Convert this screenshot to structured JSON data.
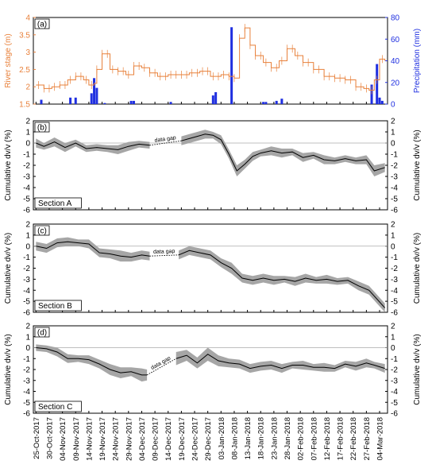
{
  "chart_data": [
    {
      "type": "line",
      "panel_label": "(a)",
      "ylabel": "River stage (m)",
      "ylabel_right": "Precipitation (mm)",
      "ylim": [
        1.5,
        4
      ],
      "ylim_right": [
        0,
        80
      ],
      "yticks": [
        "1.5",
        "2",
        "2.5",
        "3",
        "3.5",
        "4"
      ],
      "yticks_right": [
        "0",
        "20",
        "40",
        "60",
        "80"
      ],
      "colors": {
        "stage": "#e8803a",
        "precip": "#1f2fe0"
      },
      "series": [
        {
          "name": "River stage",
          "x": [
            "2017-10-25",
            "2017-10-28",
            "2017-10-31",
            "2017-11-03",
            "2017-11-06",
            "2017-11-09",
            "2017-11-12",
            "2017-11-14",
            "2017-11-16",
            "2017-11-17",
            "2017-11-19",
            "2017-11-22",
            "2017-11-25",
            "2017-11-28",
            "2017-12-01",
            "2017-12-04",
            "2017-12-07",
            "2017-12-10",
            "2017-12-14",
            "2017-12-18",
            "2017-12-22",
            "2017-12-26",
            "2017-12-30",
            "2018-01-03",
            "2018-01-06",
            "2018-01-08",
            "2018-01-10",
            "2018-01-12",
            "2018-01-14",
            "2018-01-16",
            "2018-01-19",
            "2018-01-22",
            "2018-01-25",
            "2018-01-28",
            "2018-01-31",
            "2018-02-03",
            "2018-02-07",
            "2018-02-11",
            "2018-02-15",
            "2018-02-19",
            "2018-02-23",
            "2018-02-26",
            "2018-02-28",
            "2018-03-02",
            "2018-03-04",
            "2018-03-06"
          ],
          "values": [
            2.05,
            1.95,
            2.0,
            2.05,
            2.2,
            2.3,
            2.2,
            2.05,
            2.1,
            2.5,
            2.95,
            2.5,
            2.45,
            2.35,
            2.6,
            2.55,
            2.4,
            2.3,
            2.35,
            2.35,
            2.4,
            2.45,
            2.3,
            2.35,
            2.3,
            2.25,
            3.4,
            3.7,
            3.2,
            2.9,
            2.7,
            2.55,
            2.75,
            3.1,
            2.9,
            2.7,
            2.5,
            2.3,
            2.25,
            2.2,
            2.0,
            1.95,
            1.9,
            2.2,
            2.8,
            2.75
          ]
        },
        {
          "name": "Precipitation",
          "x": [
            "2017-10-27",
            "2017-11-07",
            "2017-11-09",
            "2017-11-15",
            "2017-11-16",
            "2017-11-17",
            "2017-11-20",
            "2017-11-30",
            "2017-12-01",
            "2017-12-15",
            "2017-12-31",
            "2018-01-01",
            "2018-01-07",
            "2018-01-19",
            "2018-01-20",
            "2018-01-24",
            "2018-01-26",
            "2018-03-01",
            "2018-03-03",
            "2018-03-04",
            "2018-03-05"
          ],
          "values": [
            4,
            6,
            6,
            10,
            24,
            15,
            1,
            3,
            3,
            2,
            8,
            11,
            71,
            2,
            2,
            3,
            5,
            18,
            37,
            6,
            3
          ]
        }
      ]
    },
    {
      "type": "line",
      "panel_label": "(b)",
      "annotation": "Section A",
      "ylabel": "Cumulative dv/v (%)",
      "ylabel_right": "Cumulative dv/v (%)",
      "ylim": [
        -6,
        2
      ],
      "yticks": [
        "2",
        "1",
        "0",
        "-1",
        "-2",
        "-3",
        "-4",
        "-5",
        "-6"
      ],
      "gap_label": "data gap",
      "gap": [
        "2017-12-08",
        "2017-12-18"
      ],
      "x": [
        "2017-10-25",
        "2017-10-28",
        "2017-11-01",
        "2017-11-05",
        "2017-11-09",
        "2017-11-13",
        "2017-11-17",
        "2017-11-21",
        "2017-11-25",
        "2017-11-29",
        "2017-12-03",
        "2017-12-07",
        "2017-12-19",
        "2017-12-22",
        "2017-12-25",
        "2017-12-28",
        "2017-12-31",
        "2018-01-03",
        "2018-01-06",
        "2018-01-09",
        "2018-01-12",
        "2018-01-15",
        "2018-01-18",
        "2018-01-22",
        "2018-01-26",
        "2018-01-30",
        "2018-02-03",
        "2018-02-07",
        "2018-02-11",
        "2018-02-15",
        "2018-02-19",
        "2018-02-23",
        "2018-02-27",
        "2018-03-02",
        "2018-03-06"
      ],
      "values": [
        0.0,
        -0.3,
        0.1,
        -0.4,
        0.0,
        -0.5,
        -0.4,
        -0.5,
        -0.6,
        -0.3,
        -0.1,
        -0.2,
        0.2,
        0.4,
        0.6,
        0.8,
        0.7,
        0.3,
        -1.0,
        -2.5,
        -1.9,
        -1.2,
        -0.9,
        -0.7,
        -0.9,
        -0.8,
        -1.3,
        -1.1,
        -1.5,
        -1.6,
        -1.4,
        -1.6,
        -1.5,
        -2.5,
        -2.2
      ],
      "band": [
        0.4,
        0.3,
        0.4,
        0.4,
        0.3,
        0.3,
        0.3,
        0.3,
        0.4,
        0.4,
        0.3,
        0.3,
        0.4,
        0.4,
        0.4,
        0.4,
        0.3,
        0.4,
        0.4,
        0.5,
        0.4,
        0.4,
        0.3,
        0.4,
        0.4,
        0.3,
        0.4,
        0.3,
        0.4,
        0.3,
        0.3,
        0.3,
        0.4,
        0.5,
        0.4
      ]
    },
    {
      "type": "line",
      "panel_label": "(c)",
      "annotation": "Section B",
      "ylabel": "Cumulative dv/v (%)",
      "ylabel_right": "Cumulative dv/v (%)",
      "ylim": [
        -6,
        2
      ],
      "yticks": [
        "2",
        "1",
        "0",
        "-1",
        "-2",
        "-3",
        "-4",
        "-5",
        "-6"
      ],
      "gap_label": "data gap",
      "gap": [
        "2017-12-08",
        "2017-12-18"
      ],
      "x": [
        "2017-10-25",
        "2017-10-29",
        "2017-11-02",
        "2017-11-06",
        "2017-11-10",
        "2017-11-14",
        "2017-11-18",
        "2017-11-22",
        "2017-11-26",
        "2017-11-30",
        "2017-12-04",
        "2017-12-07",
        "2017-12-18",
        "2017-12-22",
        "2017-12-26",
        "2017-12-30",
        "2018-01-03",
        "2018-01-07",
        "2018-01-11",
        "2018-01-15",
        "2018-01-19",
        "2018-01-23",
        "2018-01-27",
        "2018-01-31",
        "2018-02-04",
        "2018-02-08",
        "2018-02-12",
        "2018-02-16",
        "2018-02-20",
        "2018-02-24",
        "2018-02-28",
        "2018-03-03",
        "2018-03-06"
      ],
      "values": [
        0.0,
        -0.2,
        0.3,
        0.4,
        0.3,
        0.2,
        -0.6,
        -0.7,
        -0.9,
        -1.0,
        -0.8,
        -0.9,
        -0.8,
        -0.4,
        -0.6,
        -0.8,
        -1.5,
        -2.0,
        -2.9,
        -3.1,
        -2.9,
        -3.1,
        -3.0,
        -3.2,
        -2.9,
        -3.1,
        -3.0,
        -3.2,
        -3.1,
        -3.6,
        -4.0,
        -4.8,
        -5.6
      ],
      "band": [
        0.4,
        0.4,
        0.4,
        0.4,
        0.3,
        0.4,
        0.4,
        0.4,
        0.5,
        0.4,
        0.4,
        0.4,
        0.4,
        0.4,
        0.4,
        0.4,
        0.4,
        0.5,
        0.4,
        0.4,
        0.4,
        0.4,
        0.3,
        0.4,
        0.4,
        0.3,
        0.4,
        0.3,
        0.3,
        0.4,
        0.4,
        0.4,
        0.4
      ]
    },
    {
      "type": "line",
      "panel_label": "(d)",
      "annotation": "Section C",
      "ylabel": "Cumulative dv/v (%)",
      "ylabel_right": "Cumulative dv/v (%)",
      "ylim": [
        -6,
        2
      ],
      "yticks": [
        "2",
        "1",
        "0",
        "-1",
        "-2",
        "-3",
        "-4",
        "-5",
        "-6"
      ],
      "gap_label": "data gap",
      "gap": [
        "2017-12-07",
        "2017-12-17"
      ],
      "x": [
        "2017-10-25",
        "2017-10-29",
        "2017-11-02",
        "2017-11-06",
        "2017-11-10",
        "2017-11-14",
        "2017-11-18",
        "2017-11-22",
        "2017-11-26",
        "2017-11-30",
        "2017-12-04",
        "2017-12-06",
        "2017-12-17",
        "2017-12-21",
        "2017-12-25",
        "2017-12-29",
        "2018-01-02",
        "2018-01-06",
        "2018-01-10",
        "2018-01-14",
        "2018-01-18",
        "2018-01-22",
        "2018-01-26",
        "2018-01-30",
        "2018-02-03",
        "2018-02-07",
        "2018-02-11",
        "2018-02-15",
        "2018-02-19",
        "2018-02-23",
        "2018-02-27",
        "2018-03-02",
        "2018-03-06"
      ],
      "values": [
        0.0,
        -0.1,
        -0.4,
        -1.0,
        -1.0,
        -1.1,
        -1.5,
        -2.0,
        -2.3,
        -2.2,
        -2.5,
        -2.5,
        -1.0,
        -0.7,
        -1.4,
        -0.6,
        -1.2,
        -1.4,
        -1.5,
        -1.9,
        -1.7,
        -1.6,
        -1.9,
        -1.6,
        -1.6,
        -1.8,
        -1.8,
        -1.9,
        -1.5,
        -1.7,
        -1.4,
        -1.6,
        -1.9
      ],
      "band": [
        0.3,
        0.3,
        0.4,
        0.4,
        0.3,
        0.4,
        0.4,
        0.5,
        0.5,
        0.4,
        0.6,
        0.5,
        0.6,
        0.5,
        0.5,
        0.6,
        0.5,
        0.4,
        0.4,
        0.4,
        0.4,
        0.4,
        0.4,
        0.3,
        0.4,
        0.3,
        0.4,
        0.3,
        0.3,
        0.4,
        0.4,
        0.3,
        0.4
      ]
    }
  ],
  "x_axis": {
    "range": [
      "2017-10-24",
      "2018-03-07"
    ],
    "ticks": [
      {
        "date": "2017-10-25",
        "label": "25-Oct-2017"
      },
      {
        "date": "2017-10-30",
        "label": "30-Oct-2017"
      },
      {
        "date": "2017-11-04",
        "label": "04-Nov-2017"
      },
      {
        "date": "2017-11-09",
        "label": "09-Nov-2017"
      },
      {
        "date": "2017-11-14",
        "label": "14-Nov-2017"
      },
      {
        "date": "2017-11-19",
        "label": "19-Nov-2017"
      },
      {
        "date": "2017-11-24",
        "label": "24-Nov-2017"
      },
      {
        "date": "2017-11-29",
        "label": "29-Nov-2017"
      },
      {
        "date": "2017-12-04",
        "label": "04-Dec-2017"
      },
      {
        "date": "2017-12-09",
        "label": "09-Dec-2017"
      },
      {
        "date": "2017-12-14",
        "label": "14-Dec-2017"
      },
      {
        "date": "2017-12-19",
        "label": "19-Dec-2017"
      },
      {
        "date": "2017-12-24",
        "label": "24-Dec-2017"
      },
      {
        "date": "2017-12-29",
        "label": "29-Dec-2017"
      },
      {
        "date": "2018-01-03",
        "label": "03-Jan-2018"
      },
      {
        "date": "2018-01-08",
        "label": "08-Jan-2018"
      },
      {
        "date": "2018-01-13",
        "label": "13-Jan-2018"
      },
      {
        "date": "2018-01-18",
        "label": "18-Jan-2018"
      },
      {
        "date": "2018-01-23",
        "label": "23-Jan-2018"
      },
      {
        "date": "2018-01-28",
        "label": "28-Jan-2018"
      },
      {
        "date": "2018-02-02",
        "label": "02-Feb-2018"
      },
      {
        "date": "2018-02-07",
        "label": "07-Feb-2018"
      },
      {
        "date": "2018-02-12",
        "label": "12-Feb-2018"
      },
      {
        "date": "2018-02-17",
        "label": "17-Feb-2018"
      },
      {
        "date": "2018-02-22",
        "label": "22-Feb-2018"
      },
      {
        "date": "2018-02-27",
        "label": "27-Feb-2018"
      },
      {
        "date": "2018-03-04",
        "label": "04-Mar-2018"
      }
    ]
  }
}
